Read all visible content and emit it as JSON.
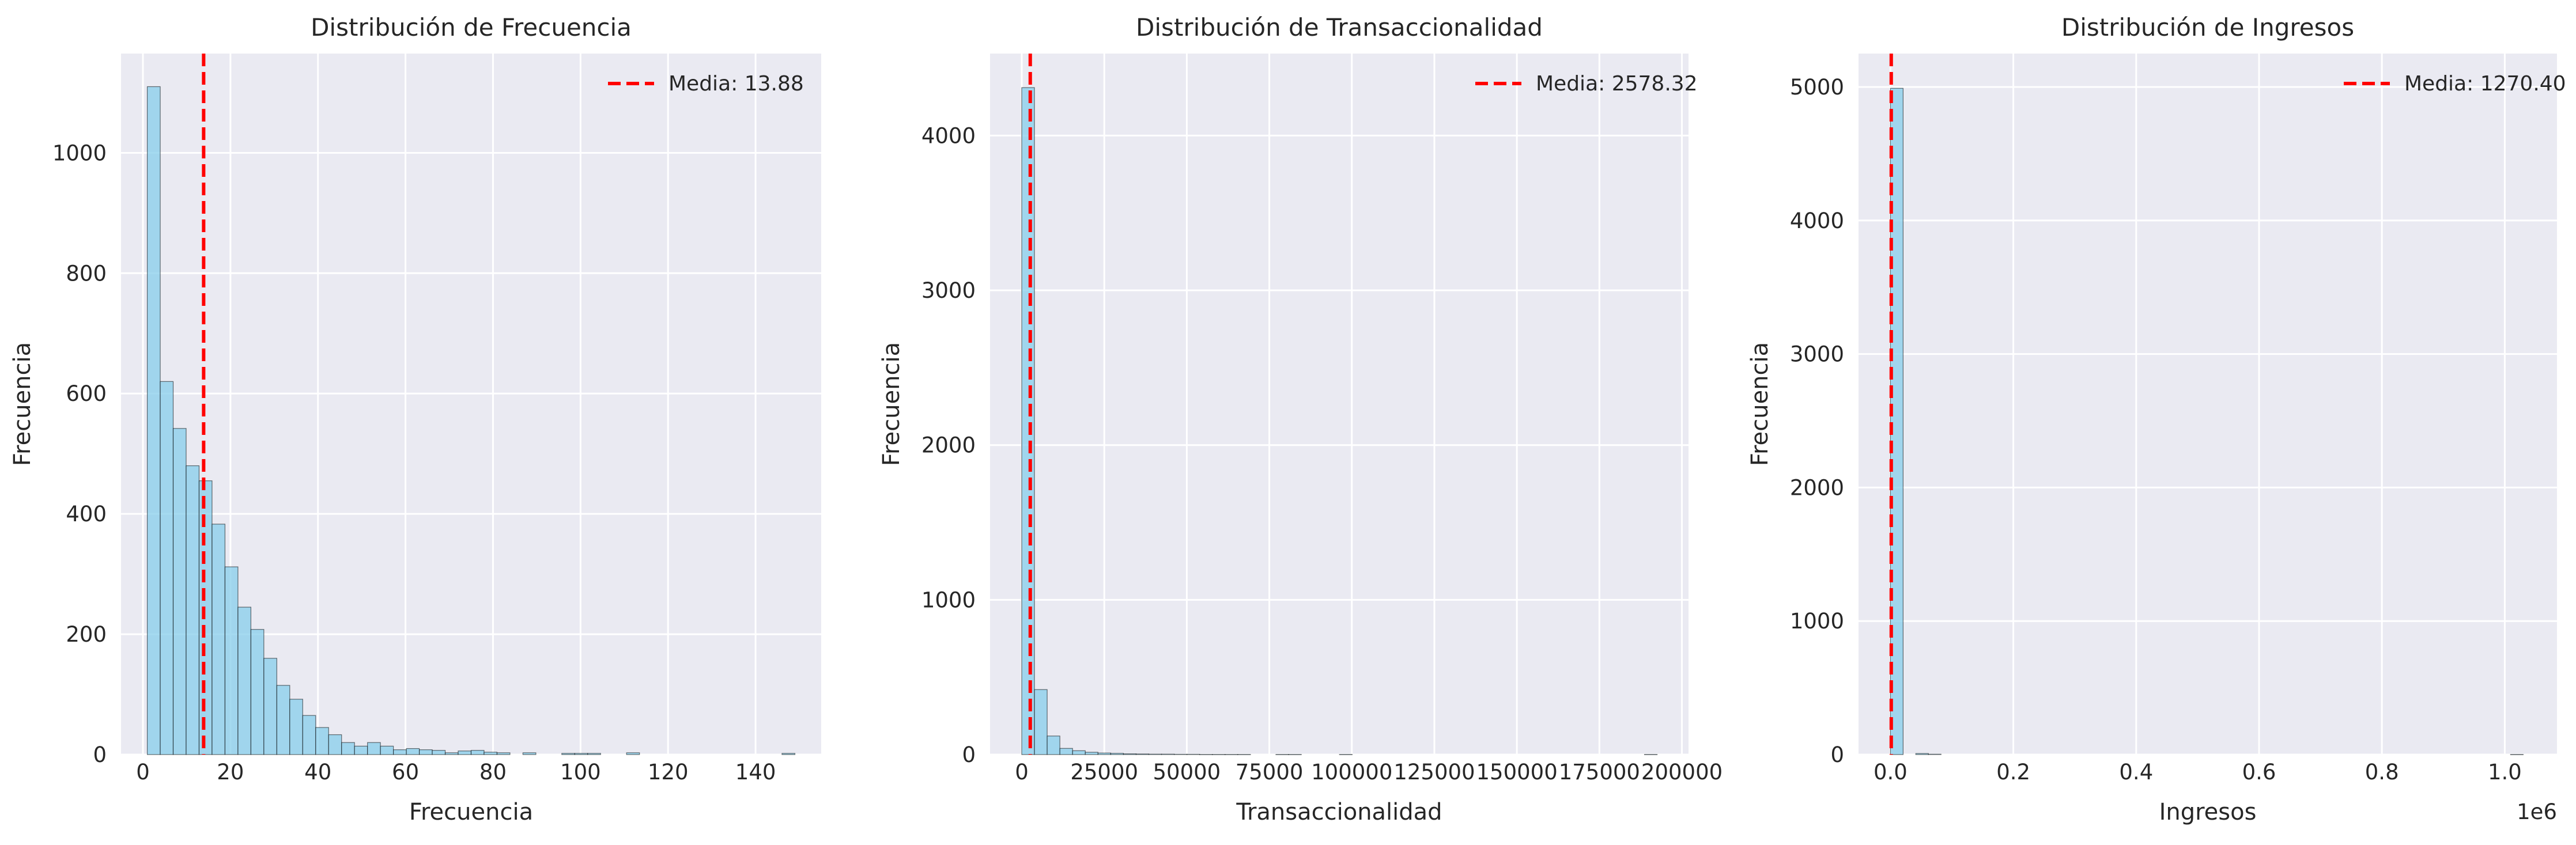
{
  "chart_data": [
    {
      "type": "bar",
      "title": "Distribución de Frecuencia",
      "xlabel": "Frecuencia",
      "ylabel": "Frecuencia",
      "xlim": [
        -5,
        155
      ],
      "ylim": [
        0,
        1165
      ],
      "x_ticks": [
        0,
        20,
        40,
        60,
        80,
        100,
        120,
        140
      ],
      "x_tick_labels": [
        "0",
        "20",
        "40",
        "60",
        "80",
        "100",
        "120",
        "140"
      ],
      "y_ticks": [
        0,
        200,
        400,
        600,
        800,
        1000
      ],
      "y_tick_labels": [
        "0",
        "200",
        "400",
        "600",
        "800",
        "1000"
      ],
      "bin_start": 1,
      "bin_width": 2.96,
      "values": [
        1110,
        620,
        542,
        480,
        455,
        383,
        312,
        245,
        208,
        160,
        115,
        92,
        65,
        45,
        33,
        20,
        14,
        20,
        14,
        8,
        10,
        8,
        7,
        3,
        6,
        7,
        4,
        3,
        0,
        3,
        0,
        0,
        2,
        2,
        2,
        0,
        0,
        3,
        0,
        0,
        0,
        0,
        0,
        0,
        0,
        0,
        0,
        0,
        0,
        2
      ],
      "mean_value": 13.88,
      "mean_label": "Media: 13.88",
      "legend_position": "upper right",
      "grid": true,
      "bar_color": "#87ceeb",
      "edge_color": "#000000",
      "mean_color": "#ff0000",
      "background": "#eaeaf2"
    },
    {
      "type": "bar",
      "title": "Distribución de Transaccionalidad",
      "xlabel": "Transaccionalidad",
      "ylabel": "Frecuencia",
      "xlim": [
        -9600,
        202000
      ],
      "ylim": [
        0,
        4530
      ],
      "x_ticks": [
        0,
        25000,
        50000,
        75000,
        100000,
        125000,
        150000,
        175000,
        200000
      ],
      "x_tick_labels": [
        "0",
        "25000",
        "50000",
        "75000",
        "100000",
        "125000",
        "150000",
        "175000",
        "200000"
      ],
      "y_ticks": [
        0,
        1000,
        2000,
        3000,
        4000
      ],
      "y_tick_labels": [
        "0",
        "1000",
        "2000",
        "3000",
        "4000"
      ],
      "bin_start": 0,
      "bin_width": 3850,
      "values": [
        4310,
        420,
        120,
        40,
        25,
        15,
        10,
        8,
        5,
        4,
        3,
        3,
        2,
        2,
        1,
        1,
        1,
        1,
        0,
        0,
        1,
        1,
        0,
        0,
        0,
        1,
        0,
        0,
        0,
        0,
        0,
        0,
        0,
        0,
        0,
        0,
        0,
        0,
        0,
        0,
        0,
        0,
        0,
        0,
        0,
        0,
        0,
        0,
        0,
        1
      ],
      "mean_value": 2578.32,
      "mean_label": "Media: 2578.32",
      "legend_position": "upper right",
      "grid": true,
      "bar_color": "#87ceeb",
      "edge_color": "#000000",
      "mean_color": "#ff0000",
      "background": "#eaeaf2"
    },
    {
      "type": "bar",
      "title": "Distribución de Ingresos",
      "xlabel": "Ingresos",
      "ylabel": "Frecuencia",
      "offset_label": "1e6",
      "xlim": [
        -0.052,
        1.085
      ],
      "ylim": [
        0,
        5250
      ],
      "x_ticks": [
        0,
        0.2,
        0.4,
        0.6,
        0.8,
        1.0
      ],
      "x_tick_labels": [
        "0.0",
        "0.2",
        "0.4",
        "0.6",
        "0.8",
        "1.0"
      ],
      "y_ticks": [
        0,
        1000,
        2000,
        3000,
        4000,
        5000
      ],
      "y_tick_labels": [
        "0",
        "1000",
        "2000",
        "3000",
        "4000",
        "5000"
      ],
      "bin_start": 0,
      "bin_width": 0.0206,
      "values": [
        4990,
        0,
        8,
        3,
        0,
        0,
        0,
        0,
        0,
        0,
        0,
        0,
        0,
        0,
        0,
        0,
        0,
        0,
        0,
        0,
        0,
        0,
        0,
        0,
        0,
        0,
        0,
        0,
        0,
        0,
        0,
        0,
        0,
        0,
        0,
        0,
        0,
        0,
        0,
        0,
        0,
        0,
        0,
        0,
        0,
        0,
        0,
        0,
        0,
        1
      ],
      "mean_value": 0.00127,
      "mean_label": "Media: 1270.40",
      "legend_position": "upper right",
      "grid": true,
      "bar_color": "#87ceeb",
      "edge_color": "#000000",
      "mean_color": "#ff0000",
      "background": "#eaeaf2"
    }
  ]
}
